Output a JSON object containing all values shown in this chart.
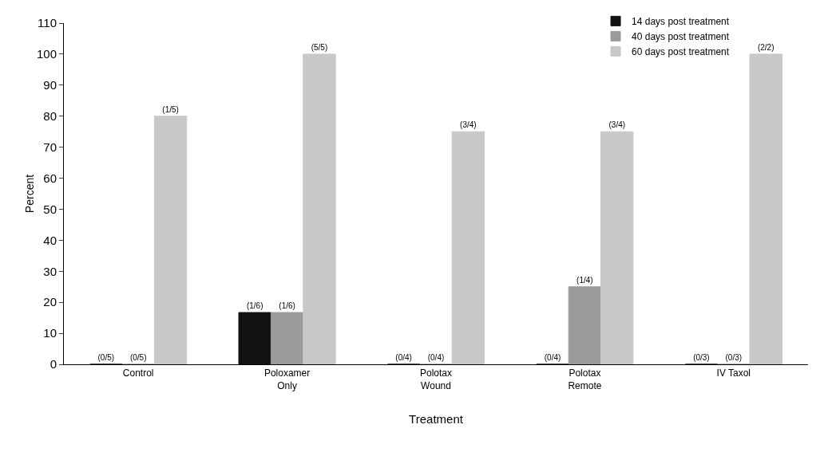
{
  "chart_data": {
    "type": "bar",
    "xlabel": "Treatment",
    "ylabel": "Percent",
    "categories": [
      "Control",
      "Poloxamer\nOnly",
      "Polotax\nWound",
      "Polotax\nRemote",
      "IV Taxol"
    ],
    "series": [
      {
        "name": "14 days post treatment",
        "color": "#111111",
        "values": [
          0,
          16.7,
          0,
          0,
          0
        ],
        "value_labels": [
          "(0/5)",
          "(1/6)",
          "(0/4)",
          "(0/4)",
          "(0/3)"
        ]
      },
      {
        "name": "40 days post treatment",
        "color": "#9a9a9a",
        "values": [
          0,
          16.7,
          0,
          25,
          0
        ],
        "value_labels": [
          "(0/5)",
          "(1/6)",
          "(0/4)",
          "(1/4)",
          "(0/3)"
        ]
      },
      {
        "name": "60 days post treatment",
        "color": "#c8c8c8",
        "values": [
          80,
          100,
          75,
          75,
          100
        ],
        "value_labels": [
          "(1/5)",
          "(5/5)",
          "(3/4)",
          "(3/4)",
          "(2/2)"
        ]
      }
    ],
    "ylim": [
      0,
      110
    ],
    "yticks": [
      0,
      10,
      20,
      30,
      40,
      50,
      60,
      70,
      80,
      90,
      100,
      110
    ],
    "grid": false,
    "legend": "top right"
  }
}
